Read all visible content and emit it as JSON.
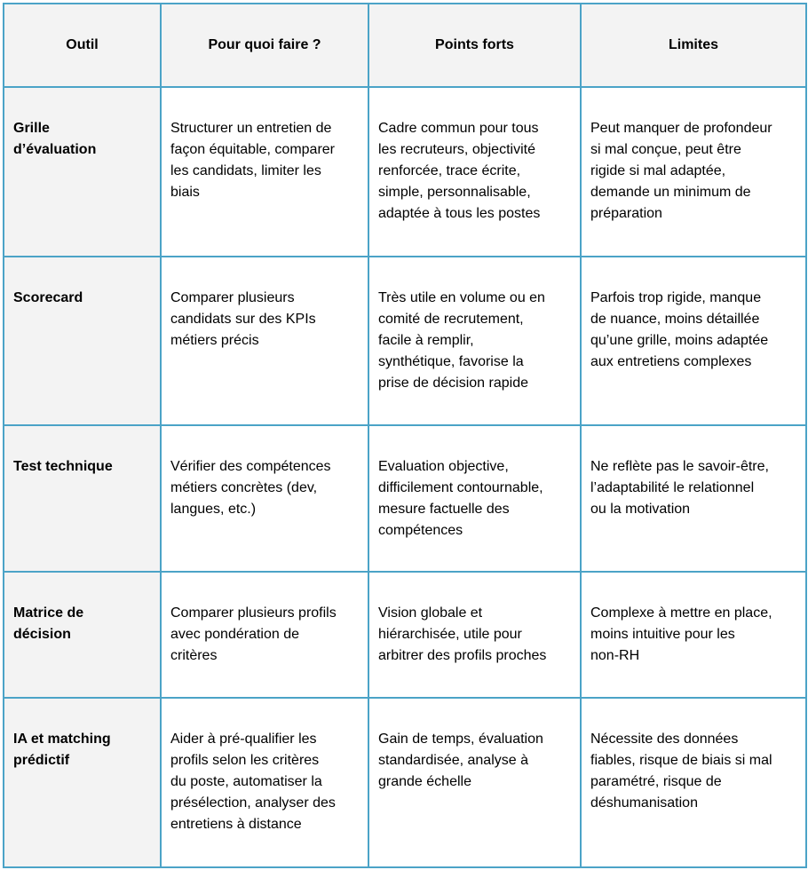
{
  "table": {
    "headers": [
      "Outil",
      "Pour quoi faire ?",
      "Points forts",
      "Limites"
    ],
    "rows": [
      [
        "Grille\nd’évaluation",
        "Structurer un entretien de\nfaçon équitable, comparer\nles candidats, limiter les\nbiais",
        "Cadre commun pour tous\nles recruteurs, objectivité\nrenforcée, trace écrite,\nsimple, personnalisable,\nadaptée à tous les postes",
        "Peut manquer de profondeur\nsi mal conçue, peut être\nrigide si mal adaptée,\ndemande un minimum de\npréparation"
      ],
      [
        "Scorecard",
        "Comparer plusieurs\ncandidats sur des KPIs\nmétiers précis",
        "Très utile en volume ou en\ncomité de recrutement,\nfacile à remplir,\nsynthétique, favorise la\nprise de décision rapide",
        "Parfois trop rigide, manque\nde nuance, moins détaillée\nqu’une grille, moins adaptée\naux entretiens complexes"
      ],
      [
        "Test technique",
        "Vérifier des compétences\nmétiers concrètes (dev,\nlangues, etc.)",
        "Evaluation objective,\ndifficilement contournable,\nmesure factuelle des\ncompétences",
        "Ne reflète pas le savoir-être,\nl’adaptabilité le relationnel\nou la motivation"
      ],
      [
        "Matrice de\ndécision",
        "Comparer plusieurs profils\navec pondération de\ncritères",
        "Vision globale et\nhiérarchisée, utile pour\narbitrer des profils proches",
        "Complexe à mettre en place,\nmoins intuitive pour les\nnon-RH"
      ],
      [
        "IA et matching\nprédictif",
        "Aider à pré-qualifier les\nprofils selon les critères\ndu poste, automatiser la\nprésélection, analyser des\nentretiens à distance",
        "Gain de temps, évaluation\nstandardisée, analyse à\ngrande échelle",
        "Nécessite des données\nfiables, risque de biais si mal\nparamétré, risque de\ndéshumanisation"
      ]
    ]
  },
  "colors": {
    "border": "#4ba3c7",
    "header_bg": "#f3f3f3"
  }
}
